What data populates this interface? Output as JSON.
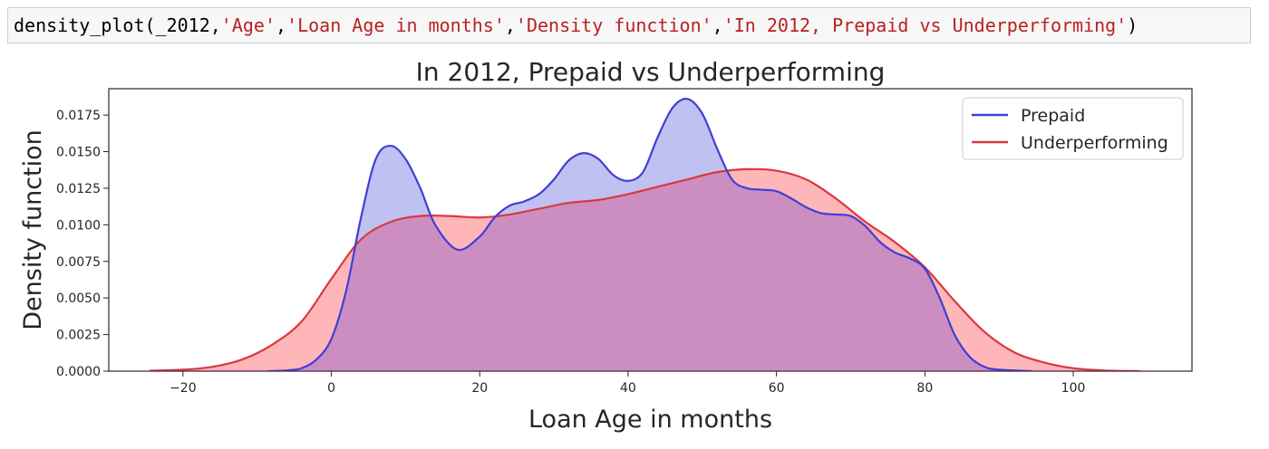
{
  "code_cell": {
    "fn": "density_plot(_2012,",
    "args": [
      "'Age'",
      "'Loan Age in months'",
      "'Density function'",
      "'In 2012, Prepaid vs Underperforming'"
    ],
    "close": ")"
  },
  "colors": {
    "prepaid_line": "#3f3fd6",
    "prepaid_fill": "#bfc1f0",
    "under_line": "#d9393f",
    "under_fill": "#ffb6b8",
    "overlap_fill": "#cc8ec1",
    "frame": "#4b2a4e"
  },
  "chart_data": {
    "type": "area",
    "title": "In 2012, Prepaid vs Underperforming",
    "xlabel": "Loan Age in months",
    "ylabel": "Density function",
    "xlim": [
      -30,
      116
    ],
    "ylim": [
      0,
      0.0193
    ],
    "xticks": [
      -20,
      0,
      20,
      40,
      60,
      80,
      100
    ],
    "xtick_labels": [
      "−20",
      "0",
      "20",
      "40",
      "60",
      "80",
      "100"
    ],
    "yticks": [
      0,
      0.0025,
      0.005,
      0.0075,
      0.01,
      0.0125,
      0.015,
      0.0175
    ],
    "ytick_labels": [
      "0.0000",
      "0.0025",
      "0.0050",
      "0.0075",
      "0.0100",
      "0.0125",
      "0.0150",
      "0.0175"
    ],
    "grid": false,
    "legend_position": "top-right",
    "series": [
      {
        "name": "Prepaid",
        "x": [
          -8.5,
          -6,
          -4,
          -2,
          0,
          2,
          4,
          6,
          8,
          10,
          12,
          14,
          17,
          20,
          22,
          24,
          26,
          28,
          30,
          32,
          34,
          36,
          38,
          40,
          42,
          44,
          46,
          48,
          50,
          52,
          54,
          56,
          58,
          60,
          62,
          64,
          66,
          68,
          70,
          72,
          74,
          76,
          78,
          80,
          82,
          84,
          86,
          88,
          90,
          94.5
        ],
        "y": [
          0,
          5e-05,
          0.0002,
          0.0008,
          0.0022,
          0.0055,
          0.0105,
          0.0145,
          0.0154,
          0.0145,
          0.0125,
          0.01,
          0.0083,
          0.0092,
          0.0105,
          0.0113,
          0.0116,
          0.0121,
          0.0131,
          0.0144,
          0.0149,
          0.0145,
          0.0134,
          0.013,
          0.0136,
          0.016,
          0.018,
          0.0186,
          0.0176,
          0.0152,
          0.0131,
          0.0125,
          0.0124,
          0.0123,
          0.0118,
          0.0112,
          0.0108,
          0.0107,
          0.0106,
          0.0099,
          0.0088,
          0.0081,
          0.0077,
          0.007,
          0.005,
          0.0025,
          0.001,
          0.0003,
          0.0001,
          0
        ]
      },
      {
        "name": "Underperforming",
        "x": [
          -24.5,
          -20,
          -16,
          -12,
          -8,
          -4,
          0,
          4,
          8,
          12,
          16,
          20,
          24,
          28,
          32,
          36,
          40,
          44,
          48,
          52,
          56,
          60,
          64,
          68,
          72,
          76,
          80,
          84,
          88,
          92,
          96,
          100,
          104,
          109
        ],
        "y": [
          3e-05,
          0.0001,
          0.0003,
          0.0008,
          0.0018,
          0.0034,
          0.0063,
          0.009,
          0.0102,
          0.0106,
          0.0106,
          0.0105,
          0.0107,
          0.0111,
          0.0115,
          0.0117,
          0.0121,
          0.0126,
          0.0131,
          0.0136,
          0.0138,
          0.0137,
          0.0131,
          0.0118,
          0.0102,
          0.0088,
          0.0071,
          0.0048,
          0.0027,
          0.0013,
          0.0006,
          0.0002,
          5e-05,
          0
        ]
      }
    ]
  }
}
